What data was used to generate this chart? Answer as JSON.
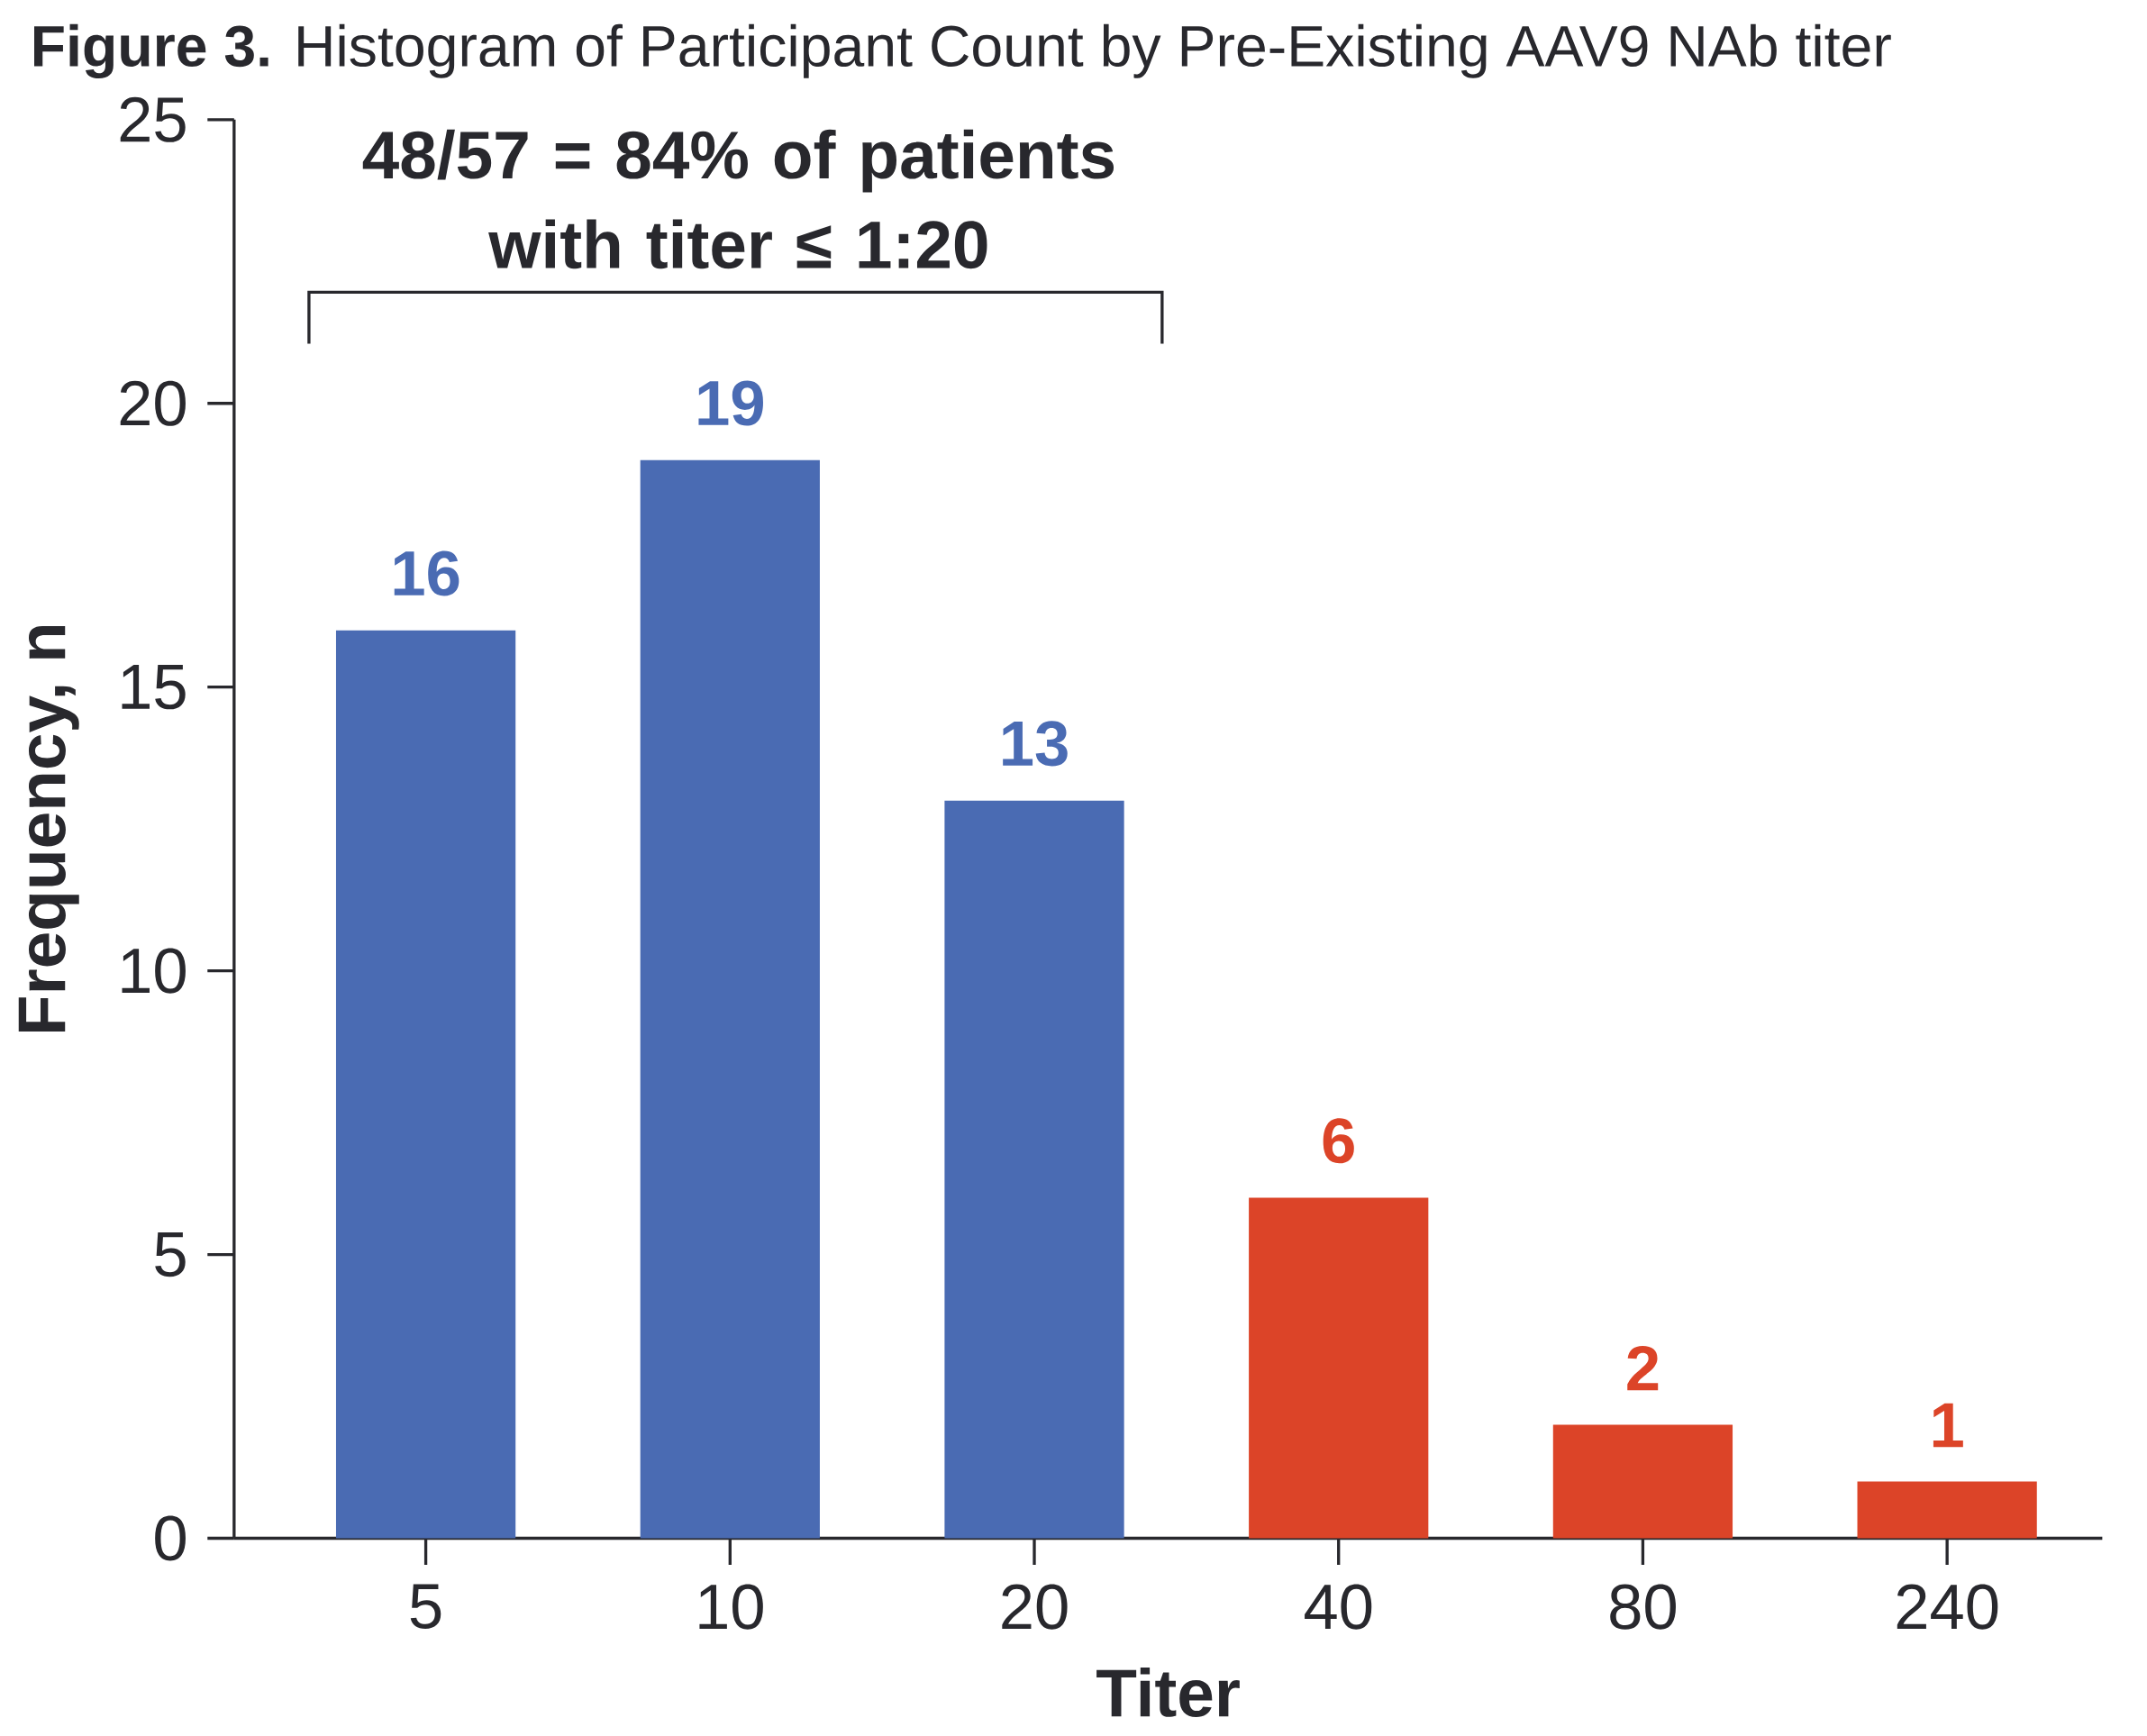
{
  "chart_data": {
    "type": "bar",
    "title": "**Figure 3.** Histogram of Participant Count by Pre-Existing AAV9 NAb titer",
    "xlabel": "Titer",
    "ylabel": "Frequency, n",
    "categories": [
      "5",
      "10",
      "20",
      "40",
      "80",
      "240"
    ],
    "values": [
      16,
      19,
      13,
      6,
      2,
      1
    ],
    "colors": [
      "#4a6bb3",
      "#4a6bb3",
      "#4a6bb3",
      "#dc4428",
      "#dc4428",
      "#dc4428"
    ],
    "ylim": [
      0,
      25
    ],
    "yticks": [
      0,
      5,
      10,
      15,
      20,
      25
    ],
    "data_labels": true,
    "annotations": [
      "48/57 = 84% of patients with titer ≤ 1:20"
    ]
  }
}
